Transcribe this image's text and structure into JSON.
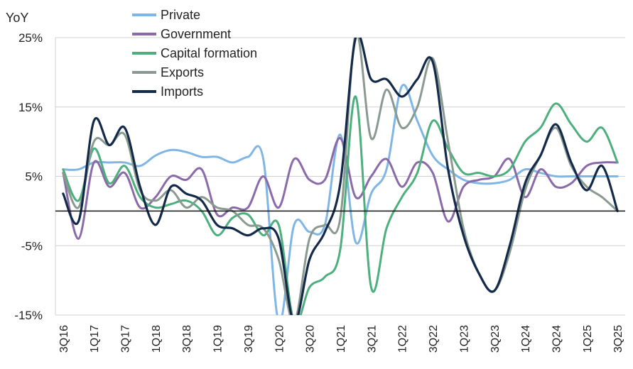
{
  "chart_data": {
    "type": "line",
    "title": "",
    "ylabel": "YoY",
    "xlabel": "",
    "ylim": [
      -15,
      25
    ],
    "yticks": [
      25,
      15,
      5,
      -5,
      -15
    ],
    "ytick_labels": [
      "25%",
      "15%",
      "5%",
      "-5%",
      "-15%"
    ],
    "grid": true,
    "legend_position": "top-left",
    "x": [
      "3Q16",
      "4Q16",
      "1Q17",
      "2Q17",
      "3Q17",
      "4Q17",
      "1Q18",
      "2Q18",
      "3Q18",
      "4Q18",
      "1Q19",
      "2Q19",
      "3Q19",
      "4Q19",
      "1Q20",
      "2Q20",
      "3Q20",
      "4Q20",
      "1Q21",
      "2Q21",
      "3Q21",
      "4Q21",
      "1Q22",
      "2Q22",
      "3Q22",
      "4Q22",
      "1Q23",
      "2Q23",
      "3Q23",
      "4Q23",
      "1Q24",
      "2Q24",
      "3Q24",
      "4Q24",
      "1Q25",
      "2Q25",
      "3Q25"
    ],
    "xtick_labels": [
      "3Q16",
      "1Q17",
      "3Q17",
      "1Q18",
      "3Q18",
      "1Q19",
      "3Q19",
      "1Q20",
      "3Q20",
      "1Q21",
      "3Q21",
      "1Q22",
      "3Q22",
      "1Q23",
      "3Q23",
      "1Q24",
      "3Q24",
      "1Q25",
      "3Q25"
    ],
    "series": [
      {
        "name": "Private",
        "color": "#7fb6e6",
        "values": [
          6.0,
          6.0,
          7.0,
          7.0,
          7.0,
          6.5,
          8.0,
          8.8,
          8.5,
          7.8,
          7.8,
          7.0,
          7.8,
          7.5,
          -16.0,
          -2.0,
          -3.0,
          -2.0,
          11.0,
          -4.5,
          2.5,
          6.0,
          18.0,
          13.0,
          8.0,
          6.0,
          4.5,
          4.0,
          4.0,
          4.5,
          6.0,
          5.5,
          5.0,
          5.0,
          5.0,
          5.0,
          5.0
        ]
      },
      {
        "name": "Government",
        "color": "#8a6aa8",
        "values": [
          5.5,
          -4.0,
          7.0,
          3.5,
          5.5,
          0.5,
          2.0,
          5.0,
          4.5,
          6.0,
          -0.5,
          0.5,
          0.5,
          5.0,
          0.5,
          7.5,
          4.5,
          4.5,
          10.5,
          2.0,
          5.0,
          7.5,
          3.5,
          7.0,
          5.5,
          -1.5,
          3.5,
          4.5,
          5.0,
          7.5,
          2.0,
          6.0,
          3.5,
          4.0,
          6.5,
          7.0,
          7.0
        ]
      },
      {
        "name": "Capital formation",
        "color": "#4caf7d",
        "values": [
          6.0,
          1.5,
          9.0,
          4.0,
          6.5,
          2.0,
          0.5,
          1.0,
          1.5,
          0.0,
          -3.5,
          -1.0,
          -0.5,
          -3.5,
          -2.0,
          -16.0,
          -11.0,
          -9.5,
          -5.5,
          16.5,
          -11.0,
          -2.5,
          2.0,
          5.5,
          13.0,
          9.0,
          5.5,
          5.5,
          5.0,
          6.0,
          10.0,
          12.0,
          15.5,
          12.5,
          10.0,
          12.0,
          7.0
        ]
      },
      {
        "name": "Exports",
        "color": "#8a9a90",
        "values": [
          5.5,
          0.5,
          10.0,
          9.5,
          11.0,
          3.0,
          1.5,
          3.0,
          0.5,
          2.0,
          0.5,
          0.0,
          -2.0,
          -2.5,
          -7.0,
          -16.0,
          -4.0,
          -2.0,
          -1.0,
          25.5,
          10.5,
          17.5,
          12.0,
          15.0,
          22.0,
          10.0,
          -2.5,
          -9.0,
          -11.5,
          -6.0,
          3.0,
          8.0,
          12.0,
          6.5,
          3.5,
          2.0,
          0.0
        ]
      },
      {
        "name": "Imports",
        "color": "#142a4a",
        "values": [
          2.5,
          -1.5,
          13.0,
          9.5,
          12.0,
          3.5,
          -2.0,
          3.5,
          2.5,
          1.5,
          -2.0,
          -2.5,
          -3.5,
          -2.5,
          -4.0,
          -16.0,
          -7.0,
          -3.0,
          4.0,
          25.0,
          19.0,
          19.0,
          16.5,
          19.0,
          21.5,
          6.0,
          -3.5,
          -9.0,
          -11.5,
          -5.0,
          4.0,
          8.0,
          12.5,
          7.0,
          3.0,
          6.5,
          0.0
        ]
      }
    ]
  }
}
